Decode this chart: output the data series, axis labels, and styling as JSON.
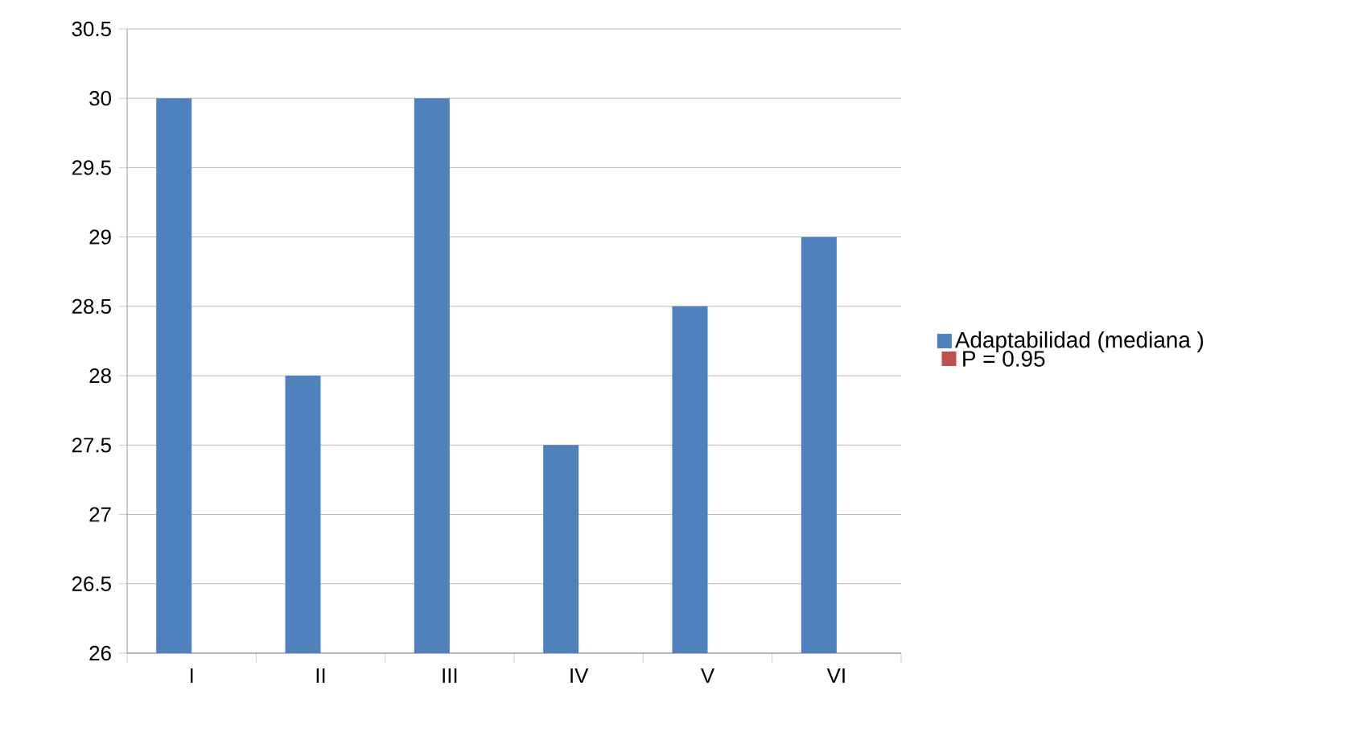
{
  "chart_data": {
    "type": "bar",
    "categories": [
      "I",
      "II",
      "III",
      "IV",
      "V",
      "VI"
    ],
    "series": [
      {
        "name": "Adaptabilidad (mediana )",
        "color": "#4f81bd",
        "values": [
          30,
          28,
          30,
          27.5,
          28.5,
          29
        ]
      },
      {
        "name": "P = 0.95",
        "color": "#c0504d",
        "values": [
          null,
          null,
          null,
          null,
          null,
          null
        ]
      }
    ],
    "ylim": [
      26,
      30.5
    ],
    "yticks": [
      26,
      26.5,
      27,
      27.5,
      28,
      28.5,
      29,
      29.5,
      30,
      30.5
    ],
    "grid": "y",
    "legend": "right"
  }
}
